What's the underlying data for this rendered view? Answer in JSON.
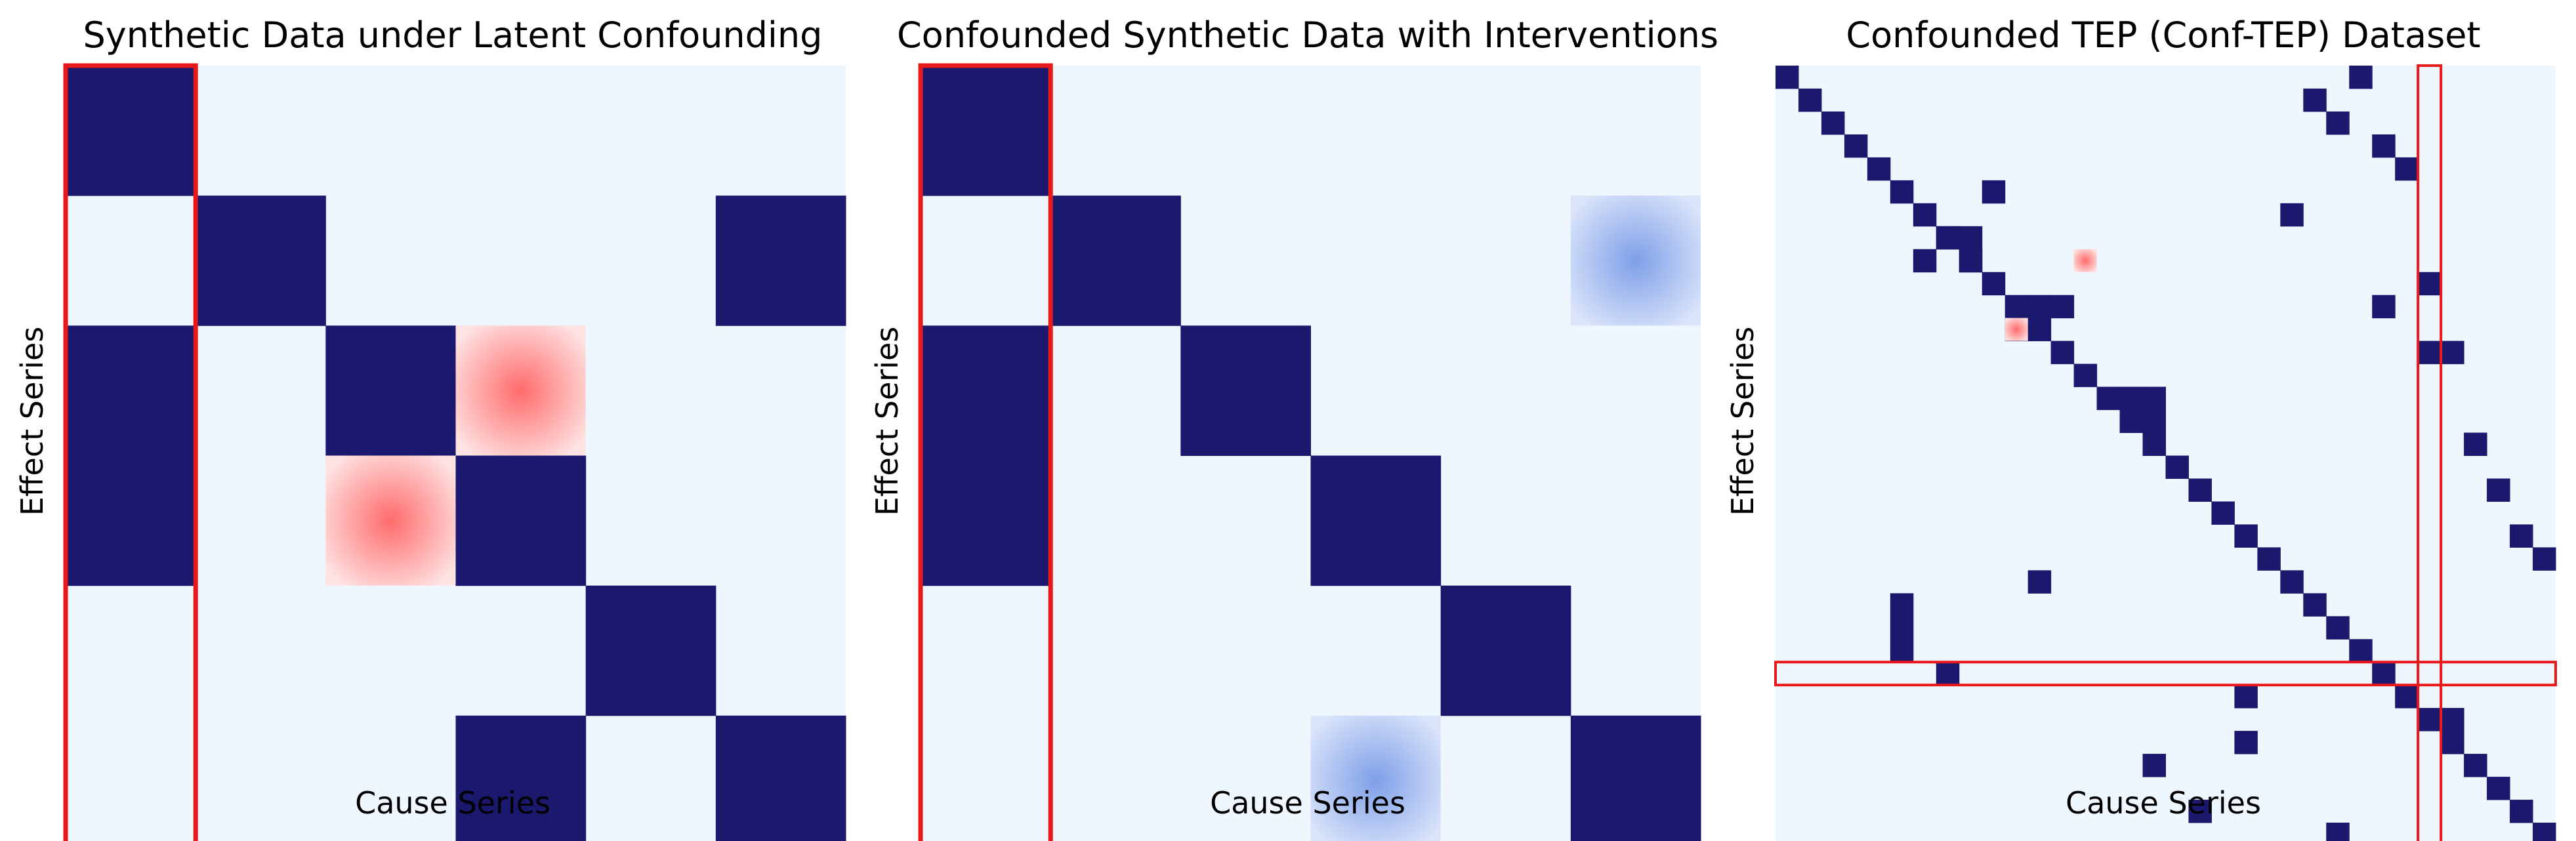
{
  "colors": {
    "background": "#eef6fe",
    "link": "#1a196d",
    "highlight_red": "#ff0000",
    "confound_red": "#ff6b6b",
    "intervention_blue": "#7e9fe8",
    "box_red": "#e8191b"
  },
  "chart_data": [
    {
      "type": "heatmap",
      "title": "Synthetic Data under Latent Confounding",
      "xlabel": "Cause Series",
      "ylabel": "Effect Series",
      "n": 6,
      "links": [
        [
          0,
          0
        ],
        [
          1,
          1
        ],
        [
          1,
          5
        ],
        [
          2,
          0
        ],
        [
          2,
          2
        ],
        [
          3,
          0
        ],
        [
          3,
          3
        ],
        [
          4,
          4
        ],
        [
          5,
          3
        ],
        [
          5,
          5
        ]
      ],
      "confounded": [
        [
          2,
          3
        ],
        [
          3,
          2
        ]
      ],
      "interventions": [],
      "box_columns": [
        0
      ],
      "box_rows": []
    },
    {
      "type": "heatmap",
      "title": "Confounded Synthetic Data with Interventions",
      "xlabel": "Cause Series",
      "ylabel": "Effect Series",
      "n": 6,
      "links": [
        [
          0,
          0
        ],
        [
          1,
          1
        ],
        [
          2,
          0
        ],
        [
          2,
          2
        ],
        [
          3,
          0
        ],
        [
          3,
          3
        ],
        [
          4,
          4
        ],
        [
          5,
          5
        ]
      ],
      "confounded": [],
      "interventions": [
        [
          1,
          5
        ],
        [
          5,
          3
        ]
      ],
      "box_columns": [
        0
      ],
      "box_rows": []
    },
    {
      "type": "heatmap",
      "title": "Confounded TEP (Conf-TEP) Dataset",
      "xlabel": "Cause Series",
      "ylabel": "Effect Series",
      "n": 34,
      "links": [
        [
          0,
          0
        ],
        [
          1,
          1
        ],
        [
          2,
          2
        ],
        [
          3,
          3
        ],
        [
          4,
          4
        ],
        [
          5,
          5
        ],
        [
          6,
          6
        ],
        [
          7,
          7
        ],
        [
          8,
          8
        ],
        [
          9,
          9
        ],
        [
          10,
          10
        ],
        [
          11,
          11
        ],
        [
          12,
          12
        ],
        [
          13,
          13
        ],
        [
          14,
          14
        ],
        [
          15,
          15
        ],
        [
          16,
          16
        ],
        [
          17,
          17
        ],
        [
          18,
          18
        ],
        [
          19,
          19
        ],
        [
          20,
          20
        ],
        [
          21,
          21
        ],
        [
          22,
          22
        ],
        [
          23,
          23
        ],
        [
          24,
          24
        ],
        [
          25,
          25
        ],
        [
          26,
          26
        ],
        [
          27,
          27
        ],
        [
          28,
          28
        ],
        [
          29,
          29
        ],
        [
          30,
          30
        ],
        [
          31,
          31
        ],
        [
          32,
          32
        ],
        [
          33,
          33
        ],
        [
          0,
          25
        ],
        [
          1,
          23
        ],
        [
          2,
          24
        ],
        [
          3,
          26
        ],
        [
          4,
          27
        ],
        [
          5,
          9
        ],
        [
          6,
          22
        ],
        [
          7,
          7
        ],
        [
          7,
          8
        ],
        [
          8,
          6
        ],
        [
          8,
          8
        ],
        [
          9,
          28
        ],
        [
          10,
          26
        ],
        [
          10,
          11
        ],
        [
          10,
          12
        ],
        [
          11,
          10
        ],
        [
          12,
          28
        ],
        [
          12,
          29
        ],
        [
          14,
          15
        ],
        [
          14,
          16
        ],
        [
          15,
          16
        ],
        [
          16,
          30
        ],
        [
          18,
          31
        ],
        [
          20,
          32
        ],
        [
          21,
          33
        ],
        [
          22,
          11
        ],
        [
          23,
          5
        ],
        [
          24,
          5
        ],
        [
          25,
          5
        ],
        [
          26,
          7
        ],
        [
          27,
          20
        ],
        [
          28,
          29
        ],
        [
          29,
          20
        ],
        [
          30,
          16
        ],
        [
          32,
          18
        ],
        [
          33,
          24
        ]
      ],
      "confounded": [
        [
          8,
          13
        ],
        [
          11,
          10
        ]
      ],
      "interventions": [],
      "box_columns": [
        28
      ],
      "box_rows": [
        26
      ]
    }
  ]
}
